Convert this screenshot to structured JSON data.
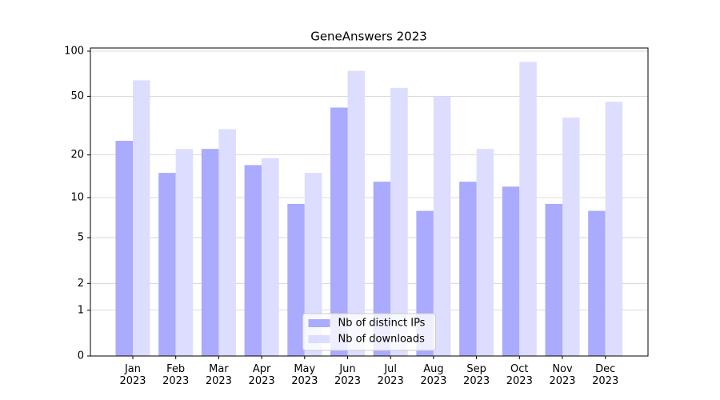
{
  "chart_data": {
    "type": "bar",
    "title": "GeneAnswers 2023",
    "categories": [
      "Jan 2023",
      "Feb 2023",
      "Mar 2023",
      "Apr 2023",
      "May 2023",
      "Jun 2023",
      "Jul 2023",
      "Aug 2023",
      "Sep 2023",
      "Oct 2023",
      "Nov 2023",
      "Dec 2023"
    ],
    "series": [
      {
        "name": "Nb of distinct IPs",
        "color": "#aaaaff",
        "values": [
          25,
          15,
          22,
          17,
          9,
          42,
          13,
          8,
          13,
          12,
          9,
          8
        ]
      },
      {
        "name": "Nb of downloads",
        "color": "#ddddff",
        "values": [
          64,
          22,
          30,
          19,
          15,
          74,
          57,
          50,
          22,
          85,
          36,
          46
        ]
      }
    ],
    "yscale": "log1p",
    "ylim": [
      0,
      105
    ],
    "yticks": [
      0,
      1,
      2,
      5,
      10,
      20,
      50,
      100
    ],
    "grid": true,
    "legend": "lower center"
  }
}
